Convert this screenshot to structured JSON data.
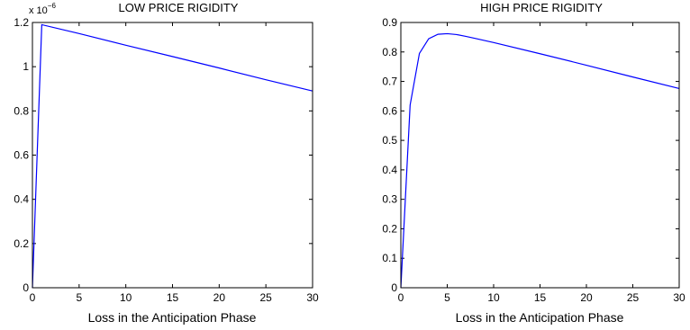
{
  "chart_data": [
    {
      "type": "line",
      "title": "LOW PRICE RIGIDITY",
      "xlabel": "Loss in the Anticipation Phase",
      "ylabel": "",
      "y_multiplier_label": "x 10",
      "y_multiplier_exponent": "−6",
      "xlim": [
        0,
        30
      ],
      "ylim": [
        0,
        1.2
      ],
      "xticks": [
        0,
        5,
        10,
        15,
        20,
        25,
        30
      ],
      "xtick_labels": [
        "0",
        "5",
        "10",
        "15",
        "20",
        "25",
        "30"
      ],
      "yticks": [
        0,
        0.2,
        0.4,
        0.6,
        0.8,
        1.0,
        1.2
      ],
      "ytick_labels": [
        "0",
        "0.2",
        "0.4",
        "0.6",
        "0.8",
        "1",
        "1.2"
      ],
      "grid": false,
      "series": [
        {
          "color": "#0000ff",
          "x": [
            0,
            1,
            5,
            10,
            15,
            20,
            25,
            30
          ],
          "y": [
            0,
            1.19,
            1.15,
            1.097,
            1.046,
            0.994,
            0.941,
            0.89
          ]
        }
      ]
    },
    {
      "type": "line",
      "title": "HIGH PRICE RIGIDITY",
      "xlabel": "Loss in the Anticipation Phase",
      "ylabel": "",
      "xlim": [
        0,
        30
      ],
      "ylim": [
        0,
        0.9
      ],
      "xticks": [
        0,
        5,
        10,
        15,
        20,
        25,
        30
      ],
      "xtick_labels": [
        "0",
        "5",
        "10",
        "15",
        "20",
        "25",
        "30"
      ],
      "yticks": [
        0,
        0.1,
        0.2,
        0.3,
        0.4,
        0.5,
        0.6,
        0.7,
        0.8,
        0.9
      ],
      "ytick_labels": [
        "0",
        "0.1",
        "0.2",
        "0.3",
        "0.4",
        "0.5",
        "0.6",
        "0.7",
        "0.8",
        "0.9"
      ],
      "grid": false,
      "series": [
        {
          "color": "#0000ff",
          "x": [
            0,
            1,
            2,
            3,
            4,
            5,
            6,
            7,
            8,
            10,
            15,
            20,
            25,
            30
          ],
          "y": [
            0,
            0.62,
            0.795,
            0.845,
            0.86,
            0.862,
            0.859,
            0.853,
            0.846,
            0.832,
            0.794,
            0.755,
            0.715,
            0.676
          ]
        }
      ]
    }
  ]
}
